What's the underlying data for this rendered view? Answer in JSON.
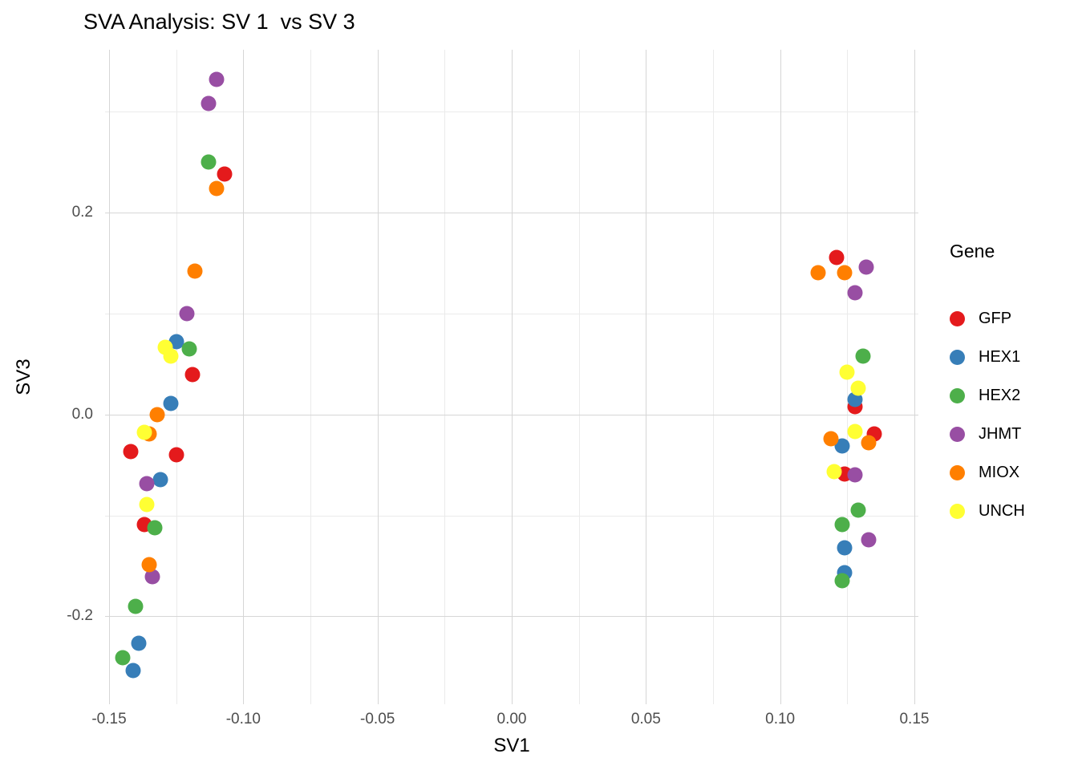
{
  "title": "SVA Analysis: SV 1  vs SV 3",
  "legend": {
    "title": "Gene"
  },
  "chart_data": {
    "type": "scatter",
    "title": "SVA Analysis: SV 1  vs SV 3",
    "xlabel": "SV1",
    "ylabel": "SV3",
    "xlim": [
      -0.1515,
      0.1515
    ],
    "ylim": [
      -0.287,
      0.361
    ],
    "grid": true,
    "legend_position": "right",
    "x_ticks": [
      -0.15,
      -0.1,
      -0.05,
      0.0,
      0.05,
      0.1,
      0.15
    ],
    "x_tick_labels": [
      "-0.15",
      "-0.10",
      "-0.05",
      "0.00",
      "0.05",
      "0.10",
      "0.15"
    ],
    "x_minor_ticks": [
      -0.125,
      -0.075,
      -0.025,
      0.025,
      0.075,
      0.125
    ],
    "y_ticks": [
      -0.2,
      0.0,
      0.2
    ],
    "y_tick_labels": [
      "-0.2",
      "0.0",
      "0.2"
    ],
    "y_minor_ticks": [
      -0.1,
      0.1,
      0.3
    ],
    "series": [
      {
        "name": "GFP",
        "color": "#E41A1C",
        "points": [
          [
            -0.107,
            0.238
          ],
          [
            -0.119,
            0.039
          ],
          [
            -0.142,
            -0.037
          ],
          [
            -0.125,
            -0.04
          ],
          [
            -0.137,
            -0.109
          ],
          [
            0.121,
            0.155
          ],
          [
            0.128,
            0.008
          ],
          [
            0.135,
            -0.019
          ],
          [
            0.124,
            -0.059
          ]
        ]
      },
      {
        "name": "HEX1",
        "color": "#377EB8",
        "points": [
          [
            -0.125,
            0.072
          ],
          [
            -0.127,
            0.011
          ],
          [
            -0.131,
            -0.065
          ],
          [
            -0.139,
            -0.227
          ],
          [
            -0.141,
            -0.254
          ],
          [
            0.128,
            0.015
          ],
          [
            0.123,
            -0.031
          ],
          [
            0.124,
            -0.132
          ],
          [
            0.124,
            -0.157
          ]
        ]
      },
      {
        "name": "HEX2",
        "color": "#4DAF4A",
        "points": [
          [
            -0.113,
            0.25
          ],
          [
            -0.12,
            0.065
          ],
          [
            -0.133,
            -0.112
          ],
          [
            -0.14,
            -0.19
          ],
          [
            -0.145,
            -0.241
          ],
          [
            0.131,
            0.058
          ],
          [
            0.129,
            -0.095
          ],
          [
            0.123,
            -0.109
          ],
          [
            0.123,
            -0.165
          ]
        ]
      },
      {
        "name": "JHMT",
        "color": "#984EA3",
        "points": [
          [
            -0.11,
            0.332
          ],
          [
            -0.113,
            0.308
          ],
          [
            -0.121,
            0.1
          ],
          [
            -0.136,
            -0.069
          ],
          [
            -0.134,
            -0.161
          ],
          [
            0.132,
            0.146
          ],
          [
            0.128,
            0.12
          ],
          [
            0.128,
            -0.06
          ],
          [
            0.133,
            -0.124
          ]
        ]
      },
      {
        "name": "MIOX",
        "color": "#FF7F00",
        "points": [
          [
            -0.11,
            0.224
          ],
          [
            -0.118,
            0.142
          ],
          [
            -0.132,
            0.0
          ],
          [
            -0.135,
            -0.019
          ],
          [
            -0.135,
            -0.149
          ],
          [
            0.114,
            0.14
          ],
          [
            0.124,
            0.14
          ],
          [
            0.119,
            -0.024
          ],
          [
            0.133,
            -0.028
          ]
        ]
      },
      {
        "name": "UNCH",
        "color": "#FFFF33",
        "points": [
          [
            -0.129,
            0.066
          ],
          [
            -0.127,
            0.058
          ],
          [
            -0.137,
            -0.018
          ],
          [
            -0.136,
            -0.089
          ],
          [
            0.125,
            0.042
          ],
          [
            0.129,
            0.026
          ],
          [
            0.128,
            -0.017
          ],
          [
            0.12,
            -0.057
          ]
        ]
      }
    ]
  }
}
